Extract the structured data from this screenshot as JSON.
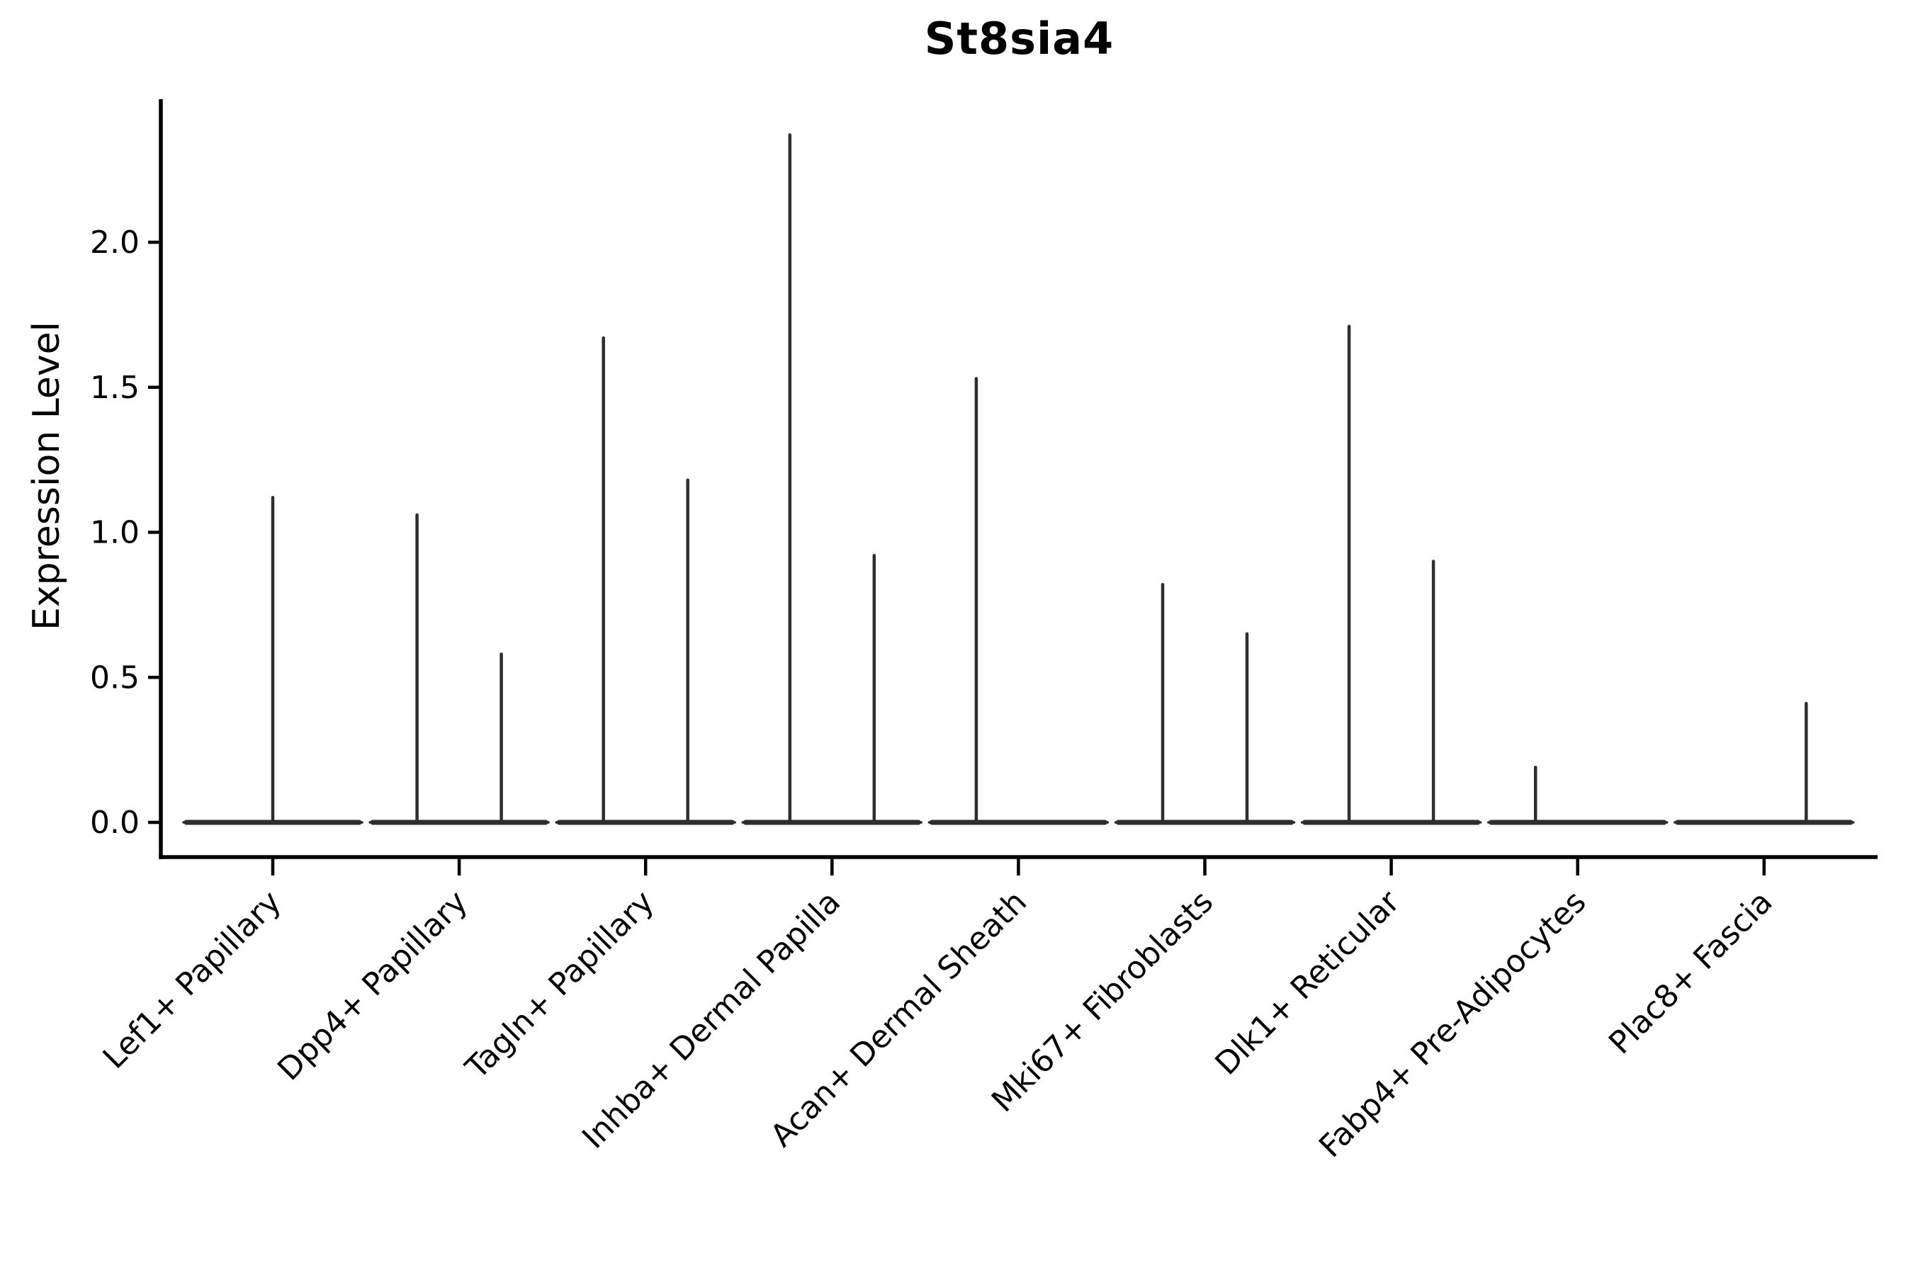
{
  "chart_data": {
    "type": "violin",
    "title": "St8sia4",
    "ylabel": "Expression Level",
    "xlabel": "",
    "yticks": [
      "0.0",
      "0.5",
      "1.0",
      "1.5",
      "2.0"
    ],
    "ylim": [
      -0.12,
      2.49
    ],
    "grid": false,
    "legend": "none",
    "line_color": "#2e2e2e",
    "axis_color": "#000000",
    "text_color": "#000000",
    "background_color": "#ffffff",
    "categories": [
      "Lef1+ Papillary",
      "Dpp4+ Papillary",
      "Tagln+ Papillary",
      "Inhba+ Dermal Papilla",
      "Acan+ Dermal Sheath",
      "Mki67+ Fibroblasts",
      "Dlk1+ Reticular",
      "Fabp4+ Pre-Adipocytes",
      "Plac8+ Fascia"
    ],
    "violins": [
      {
        "category": "Lef1+ Papillary",
        "spikes": [
          {
            "slot": "center",
            "max": 1.12
          }
        ]
      },
      {
        "category": "Dpp4+ Papillary",
        "spikes": [
          {
            "slot": "left",
            "max": 1.06
          },
          {
            "slot": "right",
            "max": 0.58
          }
        ]
      },
      {
        "category": "Tagln+ Papillary",
        "spikes": [
          {
            "slot": "left",
            "max": 1.67
          },
          {
            "slot": "right",
            "max": 1.18
          }
        ]
      },
      {
        "category": "Inhba+ Dermal Papilla",
        "spikes": [
          {
            "slot": "left",
            "max": 2.37
          },
          {
            "slot": "right",
            "max": 0.92
          }
        ]
      },
      {
        "category": "Acan+ Dermal Sheath",
        "spikes": [
          {
            "slot": "left",
            "max": 1.53
          }
        ]
      },
      {
        "category": "Mki67+ Fibroblasts",
        "spikes": [
          {
            "slot": "left",
            "max": 0.82
          },
          {
            "slot": "right",
            "max": 0.65
          }
        ]
      },
      {
        "category": "Dlk1+ Reticular",
        "spikes": [
          {
            "slot": "left",
            "max": 1.71
          },
          {
            "slot": "right",
            "max": 0.9
          }
        ]
      },
      {
        "category": "Fabp4+ Pre-Adipocytes",
        "spikes": [
          {
            "slot": "left",
            "max": 0.19
          }
        ]
      },
      {
        "category": "Plac8+ Fascia",
        "spikes": [
          {
            "slot": "right",
            "max": 0.41
          }
        ]
      }
    ]
  }
}
